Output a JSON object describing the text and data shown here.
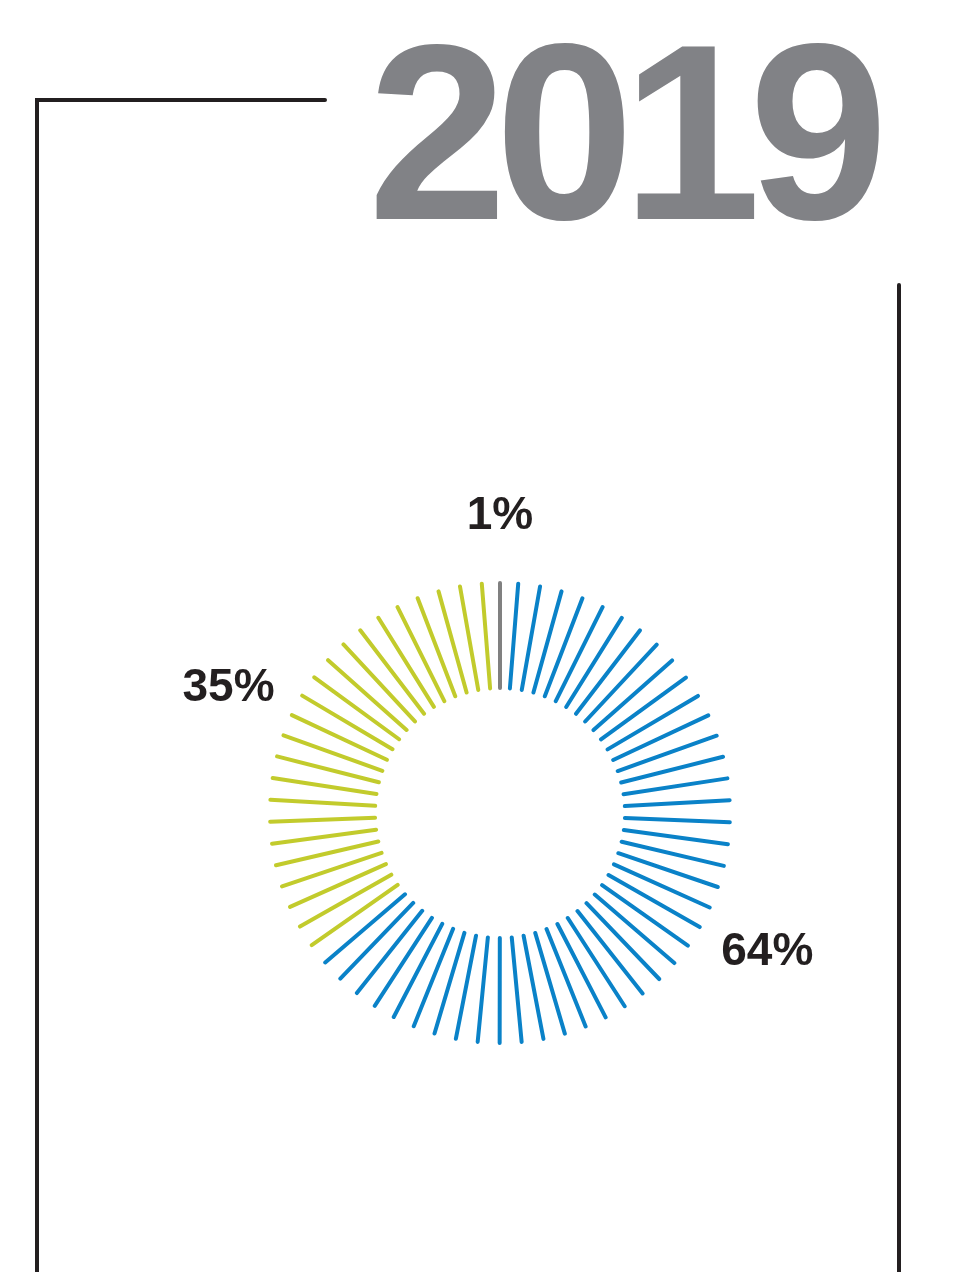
{
  "chart_data": {
    "type": "donut",
    "title": "2019",
    "categories": [
      null,
      null,
      null
    ],
    "values": [
      1,
      64,
      35
    ],
    "colors": [
      "#808080",
      "#0a82c8",
      "#c2cb2c"
    ],
    "value_labels": [
      "1%",
      "64%",
      "35%"
    ]
  }
}
